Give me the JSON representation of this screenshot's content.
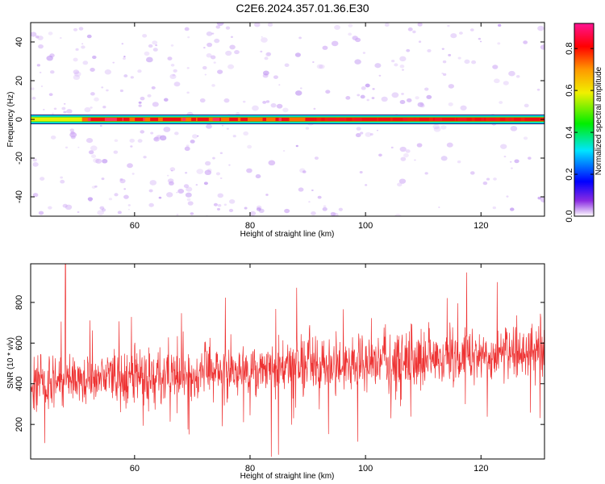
{
  "title": "C2E6.2024.357.01.36.E30",
  "chart_data": [
    {
      "type": "heatmap",
      "xlabel": "Height of straight line (km)",
      "ylabel": "Frequency (Hz)",
      "xlim": [
        42,
        131
      ],
      "ylim": [
        -50,
        50
      ],
      "xticks": [
        60,
        80,
        100,
        120
      ],
      "yticks": [
        -40,
        -20,
        0,
        20,
        40
      ],
      "line_band": {
        "frequency": 0,
        "amplitude_start": 0.45,
        "amplitude_end": 0.88
      },
      "background_amplitude": 0.12,
      "colorbar": {
        "label": "Normalized spectral amplitude",
        "range": [
          0,
          0.92
        ],
        "ticks": [
          0.0,
          0.2,
          0.4,
          0.6,
          0.8
        ],
        "tick_labels": [
          "0.0",
          "0.2",
          "0.4",
          "0.6",
          "0.8"
        ]
      }
    },
    {
      "type": "line",
      "xlabel": "Height of straight line (km)",
      "ylabel": "SNR (10 * v/v)",
      "xlim": [
        42,
        131
      ],
      "ylim": [
        30,
        990
      ],
      "xticks": [
        60,
        80,
        100,
        120
      ],
      "yticks": [
        200,
        400,
        600,
        800
      ],
      "color": "#ee3333",
      "trend": {
        "start": 400,
        "end": 560
      },
      "noise_halfwidth": 170,
      "spike": {
        "x": 48,
        "value": 990
      }
    }
  ]
}
